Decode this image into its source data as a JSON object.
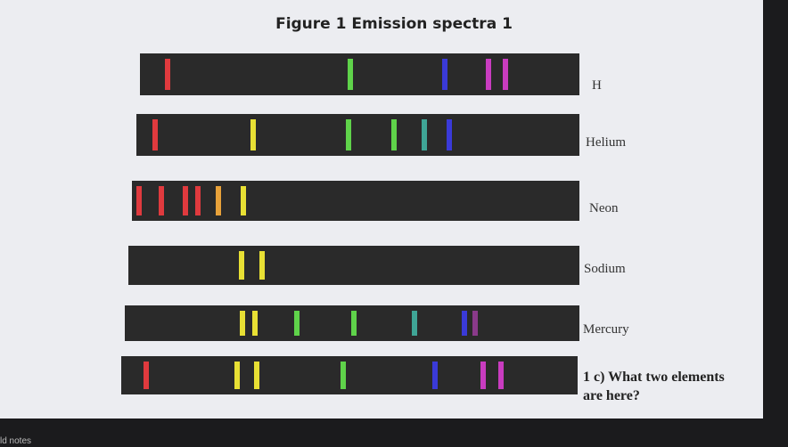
{
  "title": "Figure 1  Emission spectra 1",
  "spectra": [
    {
      "label": "H"
    },
    {
      "label": "Helium"
    },
    {
      "label": "Neon"
    },
    {
      "label": "Sodium"
    },
    {
      "label": "Mercury"
    }
  ],
  "question": {
    "line1": "1 c) What two elements",
    "line2": "are here?"
  },
  "footer": "ld notes"
}
